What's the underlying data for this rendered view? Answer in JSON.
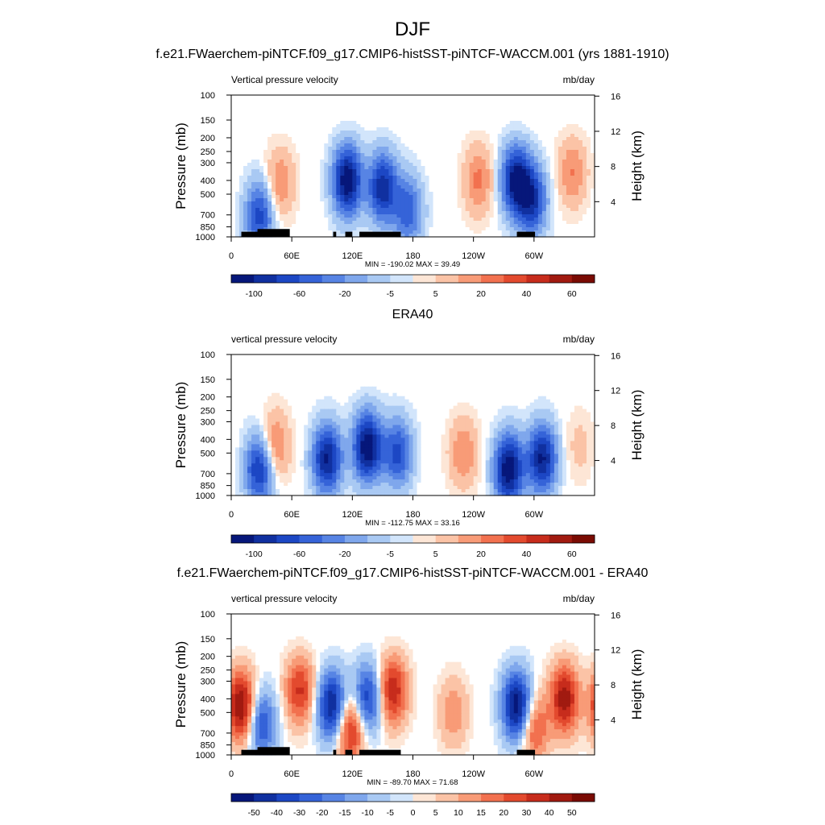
{
  "figure": {
    "title": "DJF"
  },
  "palette": {
    "pos": [
      "#fde6d6",
      "#fbc3a6",
      "#f89b77",
      "#f2714f",
      "#e34a2e",
      "#c72c1c",
      "#a11a10",
      "#7a0b03"
    ],
    "neg": [
      "#d2e5fb",
      "#a9c9f3",
      "#7fa7ec",
      "#5784e4",
      "#3563d8",
      "#1c47c4",
      "#1030a0",
      "#06177a"
    ]
  },
  "chart_data": [
    {
      "type": "heatmap",
      "title": "f.e21.FWaerchem-piNTCF.f09_g17.CMIP6-histSST-piNTCF-WACCM.001 (yrs 1881-1910)",
      "left_label": "Vertical pressure velocity",
      "right_label": "mb/day",
      "ylabel": "Pressure (mb)",
      "y2label": "Height (km)",
      "x_ticks": [
        "0",
        "60E",
        "120E",
        "180",
        "120W",
        "60W"
      ],
      "y_ticks": [
        "100",
        "150",
        "200",
        "250",
        "300",
        "400",
        "500",
        "700",
        "850",
        "1000"
      ],
      "y2_ticks": [
        "16",
        "12",
        "8",
        "4"
      ],
      "stats": "MIN = -190.02  MAX =  39.49",
      "colorbar_labels": [
        "-100",
        "-60",
        "-20",
        "-5",
        "5",
        "20",
        "40",
        "60"
      ],
      "colorbar_levels": 16,
      "topography": true,
      "features": [
        {
          "lon": 28,
          "p": 700,
          "value": -70
        },
        {
          "lon": 48,
          "p": 420,
          "value": 35
        },
        {
          "lon": 115,
          "p": 400,
          "value": -110
        },
        {
          "lon": 150,
          "p": 450,
          "value": -90
        },
        {
          "lon": 175,
          "p": 650,
          "value": -60
        },
        {
          "lon": 245,
          "p": 400,
          "value": 38
        },
        {
          "lon": 282,
          "p": 400,
          "value": -100
        },
        {
          "lon": 298,
          "p": 550,
          "value": -80
        },
        {
          "lon": 338,
          "p": 350,
          "value": 35
        }
      ]
    },
    {
      "type": "heatmap",
      "title": "ERA40",
      "left_label": "vertical pressure velocity",
      "right_label": "mb/day",
      "ylabel": "Pressure (mb)",
      "y2label": "Height (km)",
      "x_ticks": [
        "0",
        "60E",
        "120E",
        "180",
        "120W",
        "60W"
      ],
      "y_ticks": [
        "100",
        "150",
        "200",
        "250",
        "300",
        "400",
        "500",
        "700",
        "850",
        "1000"
      ],
      "y2_ticks": [
        "16",
        "12",
        "8",
        "4"
      ],
      "stats": "MIN = -112.75  MAX =  33.16",
      "colorbar_labels": [
        "-100",
        "-60",
        "-20",
        "-5",
        "5",
        "20",
        "40",
        "60"
      ],
      "colorbar_levels": 16,
      "topography": false,
      "features": [
        {
          "lon": 28,
          "p": 650,
          "value": -60
        },
        {
          "lon": 43,
          "p": 450,
          "value": 30
        },
        {
          "lon": 95,
          "p": 550,
          "value": -70
        },
        {
          "lon": 135,
          "p": 450,
          "value": -80
        },
        {
          "lon": 165,
          "p": 500,
          "value": -50
        },
        {
          "lon": 230,
          "p": 500,
          "value": 25
        },
        {
          "lon": 275,
          "p": 650,
          "value": -80
        },
        {
          "lon": 308,
          "p": 550,
          "value": -70
        },
        {
          "lon": 345,
          "p": 450,
          "value": 10
        }
      ]
    },
    {
      "type": "heatmap",
      "title": "f.e21.FWaerchem-piNTCF.f09_g17.CMIP6-histSST-piNTCF-WACCM.001 - ERA40",
      "left_label": "vertical pressure velocity",
      "right_label": "mb/day",
      "ylabel": "Pressure (mb)",
      "y2label": "Height (km)",
      "x_ticks": [
        "0",
        "60E",
        "120E",
        "180",
        "120W",
        "60W"
      ],
      "y_ticks": [
        "100",
        "150",
        "200",
        "250",
        "300",
        "400",
        "500",
        "700",
        "850",
        "1000"
      ],
      "y2_ticks": [
        "16",
        "12",
        "8",
        "4"
      ],
      "stats": "MIN = -89.70  MAX =  71.68",
      "colorbar_labels": [
        "-50",
        "-40",
        "-30",
        "-20",
        "-15",
        "-10",
        "-5",
        "0",
        "5",
        "10",
        "15",
        "20",
        "30",
        "40",
        "50"
      ],
      "colorbar_levels": 16,
      "topography": true,
      "features": [
        {
          "lon": 10,
          "p": 450,
          "value": 45
        },
        {
          "lon": 30,
          "p": 600,
          "value": -30
        },
        {
          "lon": 68,
          "p": 350,
          "value": 30
        },
        {
          "lon": 100,
          "p": 450,
          "value": -45
        },
        {
          "lon": 118,
          "p": 650,
          "value": 35
        },
        {
          "lon": 135,
          "p": 400,
          "value": -35
        },
        {
          "lon": 160,
          "p": 350,
          "value": 35
        },
        {
          "lon": 220,
          "p": 500,
          "value": 15
        },
        {
          "lon": 283,
          "p": 450,
          "value": -50
        },
        {
          "lon": 300,
          "p": 650,
          "value": 25
        },
        {
          "lon": 330,
          "p": 400,
          "value": 40
        }
      ]
    }
  ]
}
